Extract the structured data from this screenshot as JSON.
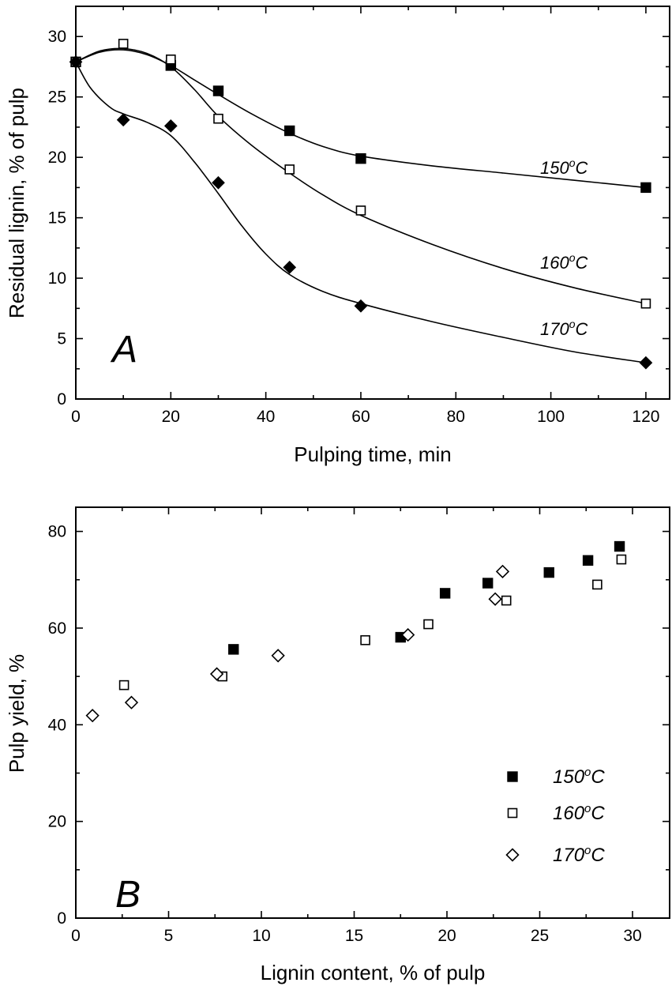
{
  "chart_data": [
    {
      "id": "A",
      "type": "line",
      "panel_letter": "A",
      "xlabel": "Pulping time, min",
      "ylabel": "Residual lignin, % of pulp",
      "xlim": [
        0,
        125
      ],
      "ylim": [
        0,
        32.5
      ],
      "xticks": [
        0,
        20,
        40,
        60,
        80,
        100,
        120
      ],
      "yticks": [
        0,
        5,
        10,
        15,
        20,
        25,
        30
      ],
      "grid": false,
      "series": [
        {
          "name": "150°C",
          "label_text": "150",
          "label_sup": "o",
          "label_unit": "C",
          "marker": "square-filled",
          "points": [
            [
              0,
              27.9
            ],
            [
              20,
              27.6
            ],
            [
              30,
              25.5
            ],
            [
              45,
              22.2
            ],
            [
              60,
              19.9
            ],
            [
              120,
              17.5
            ]
          ],
          "curve": [
            [
              0,
              27.9
            ],
            [
              5,
              28.7
            ],
            [
              10,
              28.9
            ],
            [
              15,
              28.5
            ],
            [
              20,
              27.6
            ],
            [
              25,
              26.4
            ],
            [
              30,
              25.2
            ],
            [
              37,
              23.6
            ],
            [
              45,
              22.0
            ],
            [
              52,
              20.9
            ],
            [
              60,
              20.1
            ],
            [
              75,
              19.3
            ],
            [
              90,
              18.7
            ],
            [
              105,
              18.1
            ],
            [
              120,
              17.5
            ]
          ]
        },
        {
          "name": "160°C",
          "label_text": "160",
          "label_sup": "o",
          "label_unit": "C",
          "marker": "square-open",
          "points": [
            [
              0,
              27.9
            ],
            [
              10,
              29.4
            ],
            [
              20,
              28.1
            ],
            [
              30,
              23.2
            ],
            [
              45,
              19.0
            ],
            [
              60,
              15.6
            ],
            [
              120,
              7.9
            ]
          ],
          "curve": [
            [
              0,
              27.9
            ],
            [
              5,
              28.8
            ],
            [
              10,
              29.0
            ],
            [
              15,
              28.6
            ],
            [
              20,
              27.5
            ],
            [
              25,
              25.6
            ],
            [
              30,
              23.4
            ],
            [
              37,
              21.0
            ],
            [
              45,
              18.7
            ],
            [
              52,
              16.9
            ],
            [
              60,
              15.2
            ],
            [
              75,
              12.8
            ],
            [
              90,
              10.8
            ],
            [
              105,
              9.2
            ],
            [
              120,
              7.9
            ]
          ]
        },
        {
          "name": "170°C",
          "label_text": "170",
          "label_sup": "o",
          "label_unit": "C",
          "marker": "diamond-filled",
          "points": [
            [
              0,
              27.9
            ],
            [
              10,
              23.1
            ],
            [
              20,
              22.6
            ],
            [
              30,
              17.9
            ],
            [
              45,
              10.9
            ],
            [
              60,
              7.7
            ],
            [
              120,
              3.0
            ]
          ],
          "curve": [
            [
              0,
              27.9
            ],
            [
              3,
              25.8
            ],
            [
              7,
              24.2
            ],
            [
              10,
              23.6
            ],
            [
              15,
              22.9
            ],
            [
              20,
              21.8
            ],
            [
              25,
              19.6
            ],
            [
              30,
              17.0
            ],
            [
              35,
              14.3
            ],
            [
              40,
              12.0
            ],
            [
              45,
              10.3
            ],
            [
              52,
              8.9
            ],
            [
              60,
              7.9
            ],
            [
              75,
              6.4
            ],
            [
              90,
              5.1
            ],
            [
              105,
              3.9
            ],
            [
              120,
              3.0
            ]
          ]
        }
      ]
    },
    {
      "id": "B",
      "type": "scatter",
      "panel_letter": "B",
      "xlabel": "Lignin content, % of pulp",
      "ylabel": "Pulp yield, %",
      "xlim": [
        0,
        32
      ],
      "ylim": [
        0,
        85
      ],
      "xticks": [
        0,
        5,
        10,
        15,
        20,
        25,
        30
      ],
      "yticks": [
        0,
        20,
        40,
        60,
        80
      ],
      "grid": false,
      "legend_position": "bottom-right",
      "series": [
        {
          "name": "150°C",
          "label_text": "150",
          "label_sup": "o",
          "label_unit": "C",
          "marker": "square-filled",
          "points": [
            [
              8.5,
              55.6
            ],
            [
              17.5,
              58.1
            ],
            [
              19.9,
              67.2
            ],
            [
              22.2,
              69.3
            ],
            [
              25.5,
              71.5
            ],
            [
              27.6,
              74.0
            ],
            [
              29.3,
              76.9
            ]
          ]
        },
        {
          "name": "160°C",
          "label_text": "160",
          "label_sup": "o",
          "label_unit": "C",
          "marker": "square-open",
          "points": [
            [
              2.6,
              48.2
            ],
            [
              7.9,
              50.0
            ],
            [
              15.6,
              57.5
            ],
            [
              19.0,
              60.8
            ],
            [
              23.2,
              65.7
            ],
            [
              28.1,
              69.0
            ],
            [
              29.4,
              74.2
            ]
          ]
        },
        {
          "name": "170°C",
          "label_text": "170",
          "label_sup": "o",
          "label_unit": "C",
          "marker": "diamond-open",
          "points": [
            [
              0.9,
              41.9
            ],
            [
              3.0,
              44.6
            ],
            [
              7.6,
              50.5
            ],
            [
              10.9,
              54.3
            ],
            [
              17.9,
              58.6
            ],
            [
              22.6,
              66.0
            ],
            [
              23.0,
              71.7
            ]
          ]
        }
      ]
    }
  ]
}
